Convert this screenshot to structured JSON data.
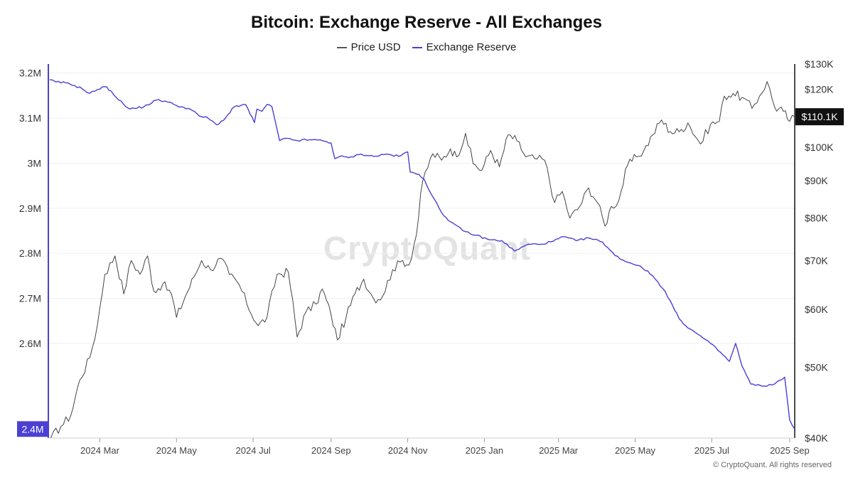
{
  "chart_data": {
    "type": "line",
    "title": "Bitcoin: Exchange Reserve - All Exchanges",
    "legend_position": "top-center",
    "grid": true,
    "x_ticks": [
      "2024 Mar",
      "2024 May",
      "2024 Jul",
      "2024 Sep",
      "2024 Nov",
      "2025 Jan",
      "2025 Mar",
      "2025 May",
      "2025 Jul",
      "2025 Sep"
    ],
    "x_range": [
      "2024-01-20",
      "2025-09-05"
    ],
    "y_left": {
      "ticks": [
        "3.2M",
        "3.1M",
        "3M",
        "2.9M",
        "2.8M",
        "2.7M",
        "2.6M"
      ],
      "ylim": [
        2.39,
        3.22
      ],
      "current_label": "2.4M"
    },
    "y_right": {
      "scale": "log",
      "ticks": [
        "$130K",
        "$120K",
        "$100K",
        "$90K",
        "$80K",
        "$70K",
        "$60K",
        "$50K",
        "$40K"
      ],
      "ylim": [
        40000,
        130000
      ],
      "current_label": "$110.1K"
    },
    "series": [
      {
        "name": "Price USD",
        "axis": "right",
        "color": "#444444",
        "x": [
          "2024-01-22",
          "2024-01-30",
          "2024-02-07",
          "2024-02-14",
          "2024-02-22",
          "2024-02-28",
          "2024-03-05",
          "2024-03-13",
          "2024-03-20",
          "2024-03-26",
          "2024-04-02",
          "2024-04-08",
          "2024-04-13",
          "2024-04-20",
          "2024-04-27",
          "2024-05-01",
          "2024-05-08",
          "2024-05-15",
          "2024-05-21",
          "2024-05-28",
          "2024-06-05",
          "2024-06-12",
          "2024-06-20",
          "2024-06-26",
          "2024-07-05",
          "2024-07-12",
          "2024-07-20",
          "2024-07-29",
          "2024-08-05",
          "2024-08-12",
          "2024-08-20",
          "2024-08-25",
          "2024-09-01",
          "2024-09-06",
          "2024-09-13",
          "2024-09-20",
          "2024-09-27",
          "2024-10-05",
          "2024-10-12",
          "2024-10-20",
          "2024-10-28",
          "2024-11-02",
          "2024-11-08",
          "2024-11-13",
          "2024-11-21",
          "2024-11-28",
          "2024-12-05",
          "2024-12-10",
          "2024-12-17",
          "2024-12-23",
          "2024-12-30",
          "2025-01-06",
          "2025-01-13",
          "2025-01-20",
          "2025-01-27",
          "2025-02-03",
          "2025-02-10",
          "2025-02-18",
          "2025-02-26",
          "2025-03-04",
          "2025-03-10",
          "2025-03-18",
          "2025-03-25",
          "2025-04-01",
          "2025-04-07",
          "2025-04-12",
          "2025-04-18",
          "2025-04-25",
          "2025-05-02",
          "2025-05-08",
          "2025-05-15",
          "2025-05-22",
          "2025-05-29",
          "2025-06-05",
          "2025-06-12",
          "2025-06-22",
          "2025-06-30",
          "2025-07-07",
          "2025-07-11",
          "2025-07-18",
          "2025-07-25",
          "2025-08-02",
          "2025-08-08",
          "2025-08-14",
          "2025-08-20",
          "2025-08-27",
          "2025-09-01",
          "2025-09-05"
        ],
        "values": [
          40000,
          41500,
          43000,
          48000,
          51500,
          57000,
          67000,
          71000,
          63000,
          70000,
          67000,
          71000,
          63500,
          65000,
          63000,
          58500,
          62500,
          66500,
          70000,
          68000,
          70500,
          67000,
          64800,
          61000,
          57000,
          58500,
          67000,
          67500,
          55000,
          59500,
          61000,
          64000,
          59000,
          54500,
          58500,
          63000,
          66000,
          62000,
          62500,
          68000,
          70000,
          69000,
          76000,
          90000,
          98000,
          96000,
          99500,
          97000,
          104500,
          95000,
          93000,
          99000,
          94000,
          104000,
          102000,
          97000,
          96500,
          96000,
          84000,
          87000,
          80000,
          83000,
          88000,
          84000,
          78000,
          83000,
          84500,
          94500,
          97000,
          99000,
          104000,
          109000,
          105000,
          105000,
          108000,
          101000,
          107500,
          108500,
          117500,
          118500,
          117000,
          113000,
          117500,
          123000,
          113500,
          112000,
          108500,
          110100
        ]
      },
      {
        "name": "Exchange Reserve",
        "axis": "left",
        "color": "#4b3fd4",
        "x": [
          "2024-01-21",
          "2024-01-26",
          "2024-02-03",
          "2024-02-10",
          "2024-02-16",
          "2024-02-22",
          "2024-02-28",
          "2024-03-05",
          "2024-03-10",
          "2024-03-16",
          "2024-03-25",
          "2024-04-05",
          "2024-04-15",
          "2024-04-22",
          "2024-04-29",
          "2024-05-05",
          "2024-05-12",
          "2024-05-19",
          "2024-05-26",
          "2024-06-02",
          "2024-06-09",
          "2024-06-16",
          "2024-06-25",
          "2024-07-02",
          "2024-07-04",
          "2024-07-08",
          "2024-07-12",
          "2024-07-16",
          "2024-07-18",
          "2024-07-22",
          "2024-07-28",
          "2024-08-05",
          "2024-08-15",
          "2024-08-25",
          "2024-09-01",
          "2024-09-04",
          "2024-09-08",
          "2024-09-15",
          "2024-09-25",
          "2024-10-05",
          "2024-10-15",
          "2024-10-25",
          "2024-11-01",
          "2024-11-03",
          "2024-11-10",
          "2024-11-14",
          "2024-11-20",
          "2024-11-28",
          "2024-12-05",
          "2024-12-15",
          "2024-12-25",
          "2025-01-05",
          "2025-01-15",
          "2025-01-25",
          "2025-02-05",
          "2025-02-15",
          "2025-02-25",
          "2025-03-05",
          "2025-03-15",
          "2025-03-25",
          "2025-04-05",
          "2025-04-15",
          "2025-04-25",
          "2025-05-05",
          "2025-05-15",
          "2025-05-25",
          "2025-06-05",
          "2025-06-10",
          "2025-06-20",
          "2025-06-30",
          "2025-07-08",
          "2025-07-15",
          "2025-07-20",
          "2025-07-25",
          "2025-08-01",
          "2025-08-10",
          "2025-08-20",
          "2025-08-28",
          "2025-09-01",
          "2025-09-05"
        ],
        "values": [
          3.185,
          3.18,
          3.178,
          3.172,
          3.165,
          3.155,
          3.163,
          3.17,
          3.16,
          3.14,
          3.12,
          3.125,
          3.14,
          3.138,
          3.13,
          3.125,
          3.12,
          3.105,
          3.1,
          3.085,
          3.1,
          3.125,
          3.13,
          3.09,
          3.12,
          3.115,
          3.13,
          3.125,
          3.1,
          3.05,
          3.055,
          3.05,
          3.052,
          3.05,
          3.045,
          3.01,
          3.015,
          3.012,
          3.02,
          3.015,
          3.02,
          3.015,
          3.025,
          2.98,
          2.975,
          2.965,
          2.93,
          2.89,
          2.87,
          2.85,
          2.84,
          2.83,
          2.828,
          2.805,
          2.82,
          2.82,
          2.827,
          2.837,
          2.828,
          2.834,
          2.825,
          2.795,
          2.78,
          2.772,
          2.75,
          2.715,
          2.655,
          2.64,
          2.62,
          2.6,
          2.58,
          2.56,
          2.6,
          2.55,
          2.51,
          2.505,
          2.51,
          2.525,
          2.43,
          2.41
        ]
      }
    ]
  },
  "branding": {
    "watermark": "CryptoQuant",
    "copyright": "© CryptoQuant. All rights reserved"
  },
  "colors": {
    "price_line": "#444444",
    "reserve_line": "#4b3fd4",
    "left_badge_bg": "#4b3fd4",
    "right_badge_bg": "#111111",
    "grid": "#eeeeee"
  }
}
